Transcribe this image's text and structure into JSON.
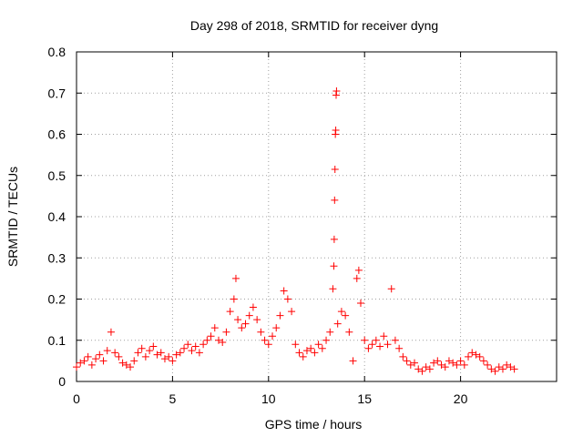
{
  "chart_data": {
    "type": "scatter",
    "title": "Day 298 of 2018, SRMTID for receiver dyng",
    "xlabel": "GPS time / hours",
    "ylabel": "SRMTID / TECUs",
    "xlim": [
      0,
      25
    ],
    "ylim": [
      0,
      0.8
    ],
    "xticks": [
      0,
      5,
      10,
      15,
      20
    ],
    "yticks": [
      0,
      0.1,
      0.2,
      0.3,
      0.4,
      0.5,
      0.6,
      0.7,
      0.8
    ],
    "xtick_labels": [
      "0",
      "5",
      "10",
      "15",
      "20"
    ],
    "ytick_labels": [
      "0",
      "0.1",
      "0.2",
      "0.3",
      "0.4",
      "0.5",
      "0.6",
      "0.7",
      "0.8"
    ],
    "grid": true,
    "marker": "+",
    "color": "#ff0000",
    "series": [
      {
        "name": "SRMTID",
        "points": [
          [
            0.0,
            0.035
          ],
          [
            0.2,
            0.045
          ],
          [
            0.4,
            0.05
          ],
          [
            0.6,
            0.06
          ],
          [
            0.8,
            0.04
          ],
          [
            1.0,
            0.055
          ],
          [
            1.2,
            0.065
          ],
          [
            1.4,
            0.05
          ],
          [
            1.6,
            0.075
          ],
          [
            1.8,
            0.12
          ],
          [
            2.0,
            0.07
          ],
          [
            2.2,
            0.06
          ],
          [
            2.4,
            0.045
          ],
          [
            2.6,
            0.04
          ],
          [
            2.8,
            0.035
          ],
          [
            3.0,
            0.05
          ],
          [
            3.2,
            0.07
          ],
          [
            3.4,
            0.08
          ],
          [
            3.6,
            0.06
          ],
          [
            3.8,
            0.075
          ],
          [
            4.0,
            0.085
          ],
          [
            4.2,
            0.065
          ],
          [
            4.4,
            0.07
          ],
          [
            4.6,
            0.055
          ],
          [
            4.8,
            0.06
          ],
          [
            5.0,
            0.05
          ],
          [
            5.2,
            0.065
          ],
          [
            5.4,
            0.07
          ],
          [
            5.6,
            0.08
          ],
          [
            5.8,
            0.09
          ],
          [
            6.0,
            0.075
          ],
          [
            6.2,
            0.085
          ],
          [
            6.4,
            0.07
          ],
          [
            6.6,
            0.09
          ],
          [
            6.8,
            0.1
          ],
          [
            7.0,
            0.11
          ],
          [
            7.2,
            0.13
          ],
          [
            7.4,
            0.1
          ],
          [
            7.6,
            0.095
          ],
          [
            7.8,
            0.12
          ],
          [
            8.0,
            0.17
          ],
          [
            8.2,
            0.2
          ],
          [
            8.3,
            0.25
          ],
          [
            8.4,
            0.15
          ],
          [
            8.6,
            0.13
          ],
          [
            8.8,
            0.14
          ],
          [
            9.0,
            0.16
          ],
          [
            9.2,
            0.18
          ],
          [
            9.4,
            0.15
          ],
          [
            9.6,
            0.12
          ],
          [
            9.8,
            0.1
          ],
          [
            10.0,
            0.09
          ],
          [
            10.2,
            0.11
          ],
          [
            10.4,
            0.13
          ],
          [
            10.6,
            0.16
          ],
          [
            10.8,
            0.22
          ],
          [
            11.0,
            0.2
          ],
          [
            11.2,
            0.17
          ],
          [
            11.4,
            0.09
          ],
          [
            11.6,
            0.07
          ],
          [
            11.8,
            0.06
          ],
          [
            12.0,
            0.075
          ],
          [
            12.2,
            0.08
          ],
          [
            12.4,
            0.07
          ],
          [
            12.6,
            0.09
          ],
          [
            12.8,
            0.08
          ],
          [
            13.0,
            0.1
          ],
          [
            13.2,
            0.12
          ],
          [
            13.35,
            0.225
          ],
          [
            13.4,
            0.28
          ],
          [
            13.42,
            0.345
          ],
          [
            13.44,
            0.44
          ],
          [
            13.46,
            0.515
          ],
          [
            13.48,
            0.6
          ],
          [
            13.5,
            0.61
          ],
          [
            13.52,
            0.695
          ],
          [
            13.54,
            0.705
          ],
          [
            13.6,
            0.14
          ],
          [
            13.8,
            0.17
          ],
          [
            14.0,
            0.16
          ],
          [
            14.2,
            0.12
          ],
          [
            14.4,
            0.05
          ],
          [
            14.6,
            0.25
          ],
          [
            14.7,
            0.27
          ],
          [
            14.8,
            0.19
          ],
          [
            15.0,
            0.1
          ],
          [
            15.2,
            0.08
          ],
          [
            15.4,
            0.09
          ],
          [
            15.6,
            0.1
          ],
          [
            15.8,
            0.085
          ],
          [
            16.0,
            0.11
          ],
          [
            16.2,
            0.09
          ],
          [
            16.4,
            0.225
          ],
          [
            16.6,
            0.1
          ],
          [
            16.8,
            0.08
          ],
          [
            17.0,
            0.06
          ],
          [
            17.2,
            0.05
          ],
          [
            17.4,
            0.04
          ],
          [
            17.6,
            0.045
          ],
          [
            17.8,
            0.03
          ],
          [
            18.0,
            0.025
          ],
          [
            18.2,
            0.035
          ],
          [
            18.4,
            0.03
          ],
          [
            18.6,
            0.045
          ],
          [
            18.8,
            0.05
          ],
          [
            19.0,
            0.04
          ],
          [
            19.2,
            0.035
          ],
          [
            19.4,
            0.05
          ],
          [
            19.6,
            0.045
          ],
          [
            19.8,
            0.04
          ],
          [
            20.0,
            0.05
          ],
          [
            20.2,
            0.04
          ],
          [
            20.4,
            0.06
          ],
          [
            20.6,
            0.07
          ],
          [
            20.8,
            0.065
          ],
          [
            21.0,
            0.06
          ],
          [
            21.2,
            0.05
          ],
          [
            21.4,
            0.04
          ],
          [
            21.6,
            0.03
          ],
          [
            21.8,
            0.025
          ],
          [
            22.0,
            0.035
          ],
          [
            22.2,
            0.03
          ],
          [
            22.4,
            0.04
          ],
          [
            22.6,
            0.035
          ],
          [
            22.8,
            0.03
          ]
        ]
      }
    ]
  }
}
